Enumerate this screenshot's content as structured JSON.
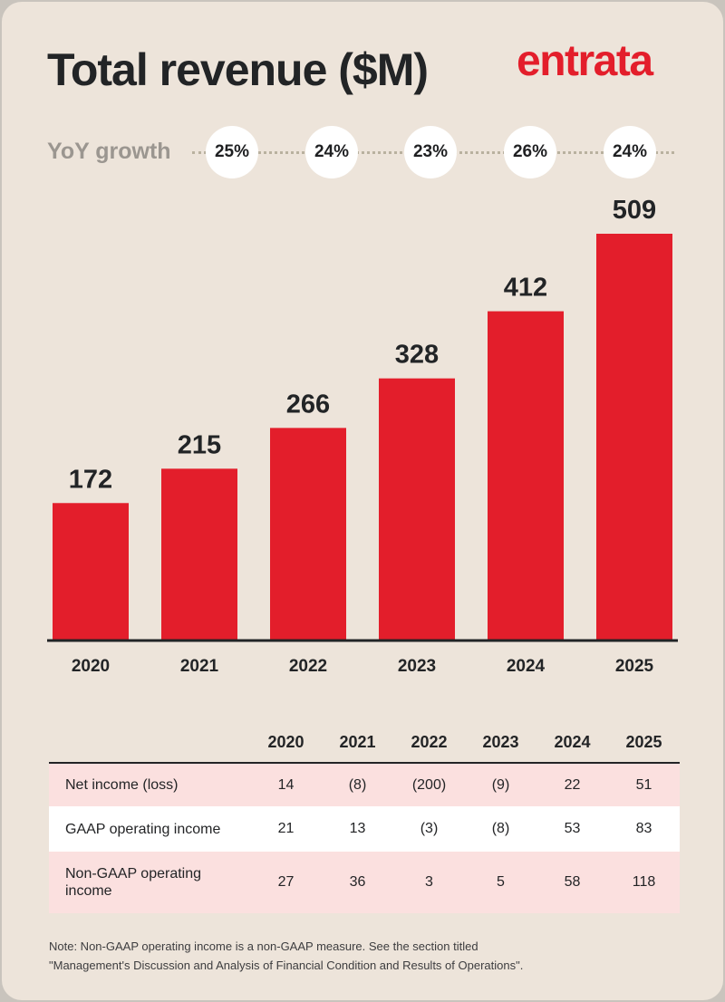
{
  "header": {
    "title": "Total revenue ($M)",
    "logo_text": "entrata"
  },
  "yoy": {
    "label": "YoY growth",
    "values": [
      "25%",
      "24%",
      "23%",
      "26%",
      "24%"
    ]
  },
  "colors": {
    "bar": "#e31e2b",
    "background": "#ede4da",
    "text": "#222426",
    "row_tint": "#fbe0df"
  },
  "chart_data": {
    "type": "bar",
    "categories": [
      "2020",
      "2021",
      "2022",
      "2023",
      "2024",
      "2025"
    ],
    "values": [
      172,
      215,
      266,
      328,
      412,
      509
    ],
    "title": "Total revenue ($M)",
    "xlabel": "",
    "ylabel": "",
    "ylim": [
      0,
      509
    ],
    "grid": false,
    "data_labels": true
  },
  "table": {
    "years": [
      "2020",
      "2021",
      "2022",
      "2023",
      "2024",
      "2025"
    ],
    "rows": [
      {
        "label": "Net income (loss)",
        "values": [
          "14",
          "(8)",
          "(200)",
          "(9)",
          "22",
          "51"
        ]
      },
      {
        "label": "GAAP operating income",
        "values": [
          "21",
          "13",
          "(3)",
          "(8)",
          "53",
          "83"
        ]
      },
      {
        "label": "Non-GAAP operating income",
        "values": [
          "27",
          "36",
          "3",
          "5",
          "58",
          "118"
        ]
      }
    ]
  },
  "note": {
    "line1": "Note: Non-GAAP operating income is a non-GAAP measure. See the section titled",
    "line2": "\"Management's Discussion and Analysis of Financial Condition and Results of Operations\"."
  }
}
